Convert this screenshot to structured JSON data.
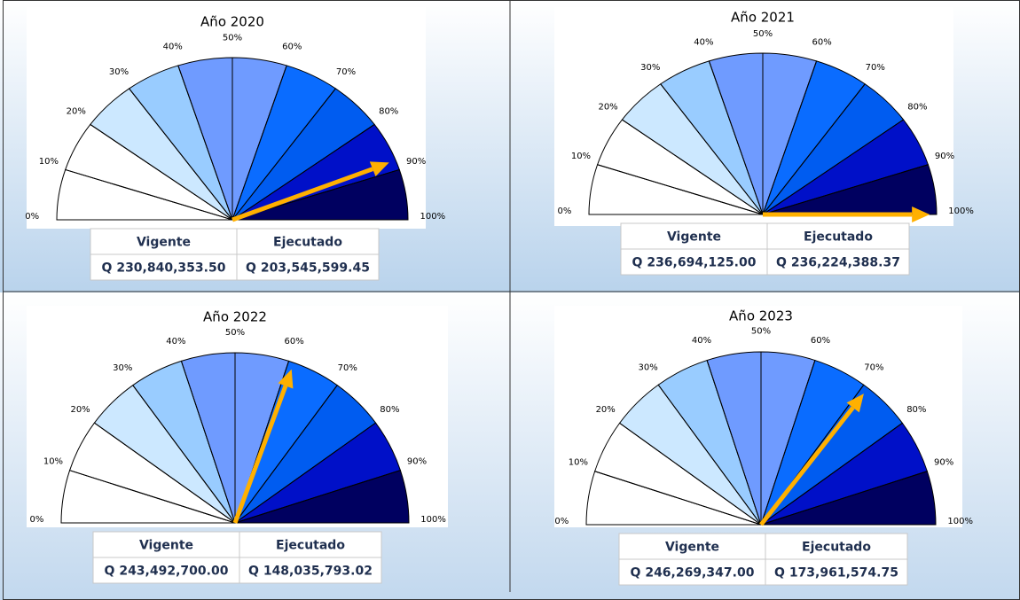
{
  "chart_data": [
    {
      "type": "gauge",
      "title": "Año 2020",
      "ylim": [
        0,
        100
      ],
      "yticks": [
        {
          "value": 0,
          "label": "0%"
        },
        {
          "value": 10,
          "label": "10%"
        },
        {
          "value": 20,
          "label": "20%"
        },
        {
          "value": 30,
          "label": "30%"
        },
        {
          "value": 40,
          "label": "40%"
        },
        {
          "value": 50,
          "label": "50%"
        },
        {
          "value": 60,
          "label": "60%"
        },
        {
          "value": 70,
          "label": "70%"
        },
        {
          "value": 80,
          "label": "80%"
        },
        {
          "value": 90,
          "label": "90%"
        },
        {
          "value": 100,
          "label": "100%"
        }
      ],
      "segment_colors": [
        "#ffffff",
        "#ffffff",
        "#cce8ff",
        "#99ccff",
        "#6f9bff",
        "#6f9bff",
        "#0a6cff",
        "#005cf0",
        "#0010c8",
        "#000060"
      ],
      "value": 88,
      "needle_color": "#ffb000",
      "table": {
        "header": [
          "Vigente",
          "Ejecutado"
        ],
        "row": [
          "Q 230,840,353.50",
          "Q 203,545,599.45"
        ]
      }
    },
    {
      "type": "gauge",
      "title": "Año 2021",
      "ylim": [
        0,
        100
      ],
      "yticks": [
        {
          "value": 0,
          "label": "0%"
        },
        {
          "value": 10,
          "label": "10%"
        },
        {
          "value": 20,
          "label": "20%"
        },
        {
          "value": 30,
          "label": "30%"
        },
        {
          "value": 40,
          "label": "40%"
        },
        {
          "value": 50,
          "label": "50%"
        },
        {
          "value": 60,
          "label": "60%"
        },
        {
          "value": 70,
          "label": "70%"
        },
        {
          "value": 80,
          "label": "80%"
        },
        {
          "value": 90,
          "label": "90%"
        },
        {
          "value": 100,
          "label": "100%"
        }
      ],
      "segment_colors": [
        "#ffffff",
        "#ffffff",
        "#cce8ff",
        "#99ccff",
        "#6f9bff",
        "#6f9bff",
        "#0a6cff",
        "#005cf0",
        "#0010c8",
        "#000060"
      ],
      "value": 100,
      "needle_color": "#ffb000",
      "table": {
        "header": [
          "Vigente",
          "Ejecutado"
        ],
        "row": [
          "Q 236,694,125.00",
          "Q 236,224,388.37"
        ]
      }
    },
    {
      "type": "gauge",
      "title": "Año 2022",
      "ylim": [
        0,
        100
      ],
      "yticks": [
        {
          "value": 0,
          "label": "0%"
        },
        {
          "value": 10,
          "label": "10%"
        },
        {
          "value": 20,
          "label": "20%"
        },
        {
          "value": 30,
          "label": "30%"
        },
        {
          "value": 40,
          "label": "40%"
        },
        {
          "value": 50,
          "label": "50%"
        },
        {
          "value": 60,
          "label": "60%"
        },
        {
          "value": 70,
          "label": "70%"
        },
        {
          "value": 80,
          "label": "80%"
        },
        {
          "value": 90,
          "label": "90%"
        },
        {
          "value": 100,
          "label": "100%"
        }
      ],
      "segment_colors": [
        "#ffffff",
        "#ffffff",
        "#cce8ff",
        "#99ccff",
        "#6f9bff",
        "#6f9bff",
        "#0a6cff",
        "#005cf0",
        "#0010c8",
        "#000060"
      ],
      "value": 61,
      "needle_color": "#ffb000",
      "table": {
        "header": [
          "Vigente",
          "Ejecutado"
        ],
        "row": [
          "Q 243,492,700.00",
          "Q 148,035,793.02"
        ]
      }
    },
    {
      "type": "gauge",
      "title": "Año 2023",
      "ylim": [
        0,
        100
      ],
      "yticks": [
        {
          "value": 0,
          "label": "0%"
        },
        {
          "value": 10,
          "label": "10%"
        },
        {
          "value": 20,
          "label": "20%"
        },
        {
          "value": 30,
          "label": "30%"
        },
        {
          "value": 40,
          "label": "40%"
        },
        {
          "value": 50,
          "label": "50%"
        },
        {
          "value": 60,
          "label": "60%"
        },
        {
          "value": 70,
          "label": "70%"
        },
        {
          "value": 80,
          "label": "80%"
        },
        {
          "value": 90,
          "label": "90%"
        },
        {
          "value": 100,
          "label": "100%"
        }
      ],
      "segment_colors": [
        "#ffffff",
        "#ffffff",
        "#cce8ff",
        "#99ccff",
        "#6f9bff",
        "#6f9bff",
        "#0a6cff",
        "#005cf0",
        "#0010c8",
        "#000060"
      ],
      "value": 71,
      "needle_color": "#ffb000",
      "table": {
        "header": [
          "Vigente",
          "Ejecutado"
        ],
        "row": [
          "Q 246,269,347.00",
          "Q 173,961,574.75"
        ]
      }
    }
  ]
}
